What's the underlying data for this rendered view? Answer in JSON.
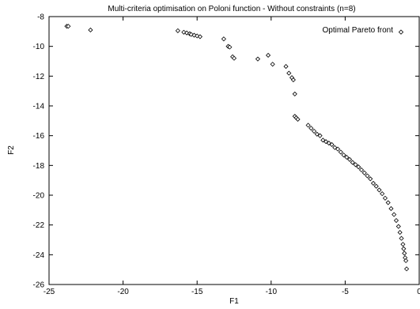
{
  "chart_data": {
    "type": "scatter",
    "title": "Multi-criteria optimisation on Poloni function - Without constraints (n=8)",
    "xlabel": "F1",
    "ylabel": "F2",
    "xlim": [
      -25,
      0
    ],
    "ylim": [
      -26,
      -8
    ],
    "x_ticks": [
      -25,
      -20,
      -15,
      -10,
      -5,
      0
    ],
    "y_ticks": [
      -8,
      -10,
      -12,
      -14,
      -16,
      -18,
      -20,
      -22,
      -24,
      -26
    ],
    "grid": false,
    "legend": {
      "placement": "top-right",
      "entries": [
        "Optimal Pareto front"
      ]
    },
    "series": [
      {
        "name": "Optimal Pareto front",
        "marker": "diamond",
        "points": [
          [
            -23.8,
            -8.65
          ],
          [
            -23.7,
            -8.65
          ],
          [
            -22.2,
            -8.9
          ],
          [
            -16.3,
            -8.95
          ],
          [
            -15.9,
            -9.05
          ],
          [
            -15.7,
            -9.1
          ],
          [
            -15.5,
            -9.15
          ],
          [
            -15.4,
            -9.2
          ],
          [
            -15.2,
            -9.25
          ],
          [
            -15.0,
            -9.3
          ],
          [
            -14.8,
            -9.35
          ],
          [
            -13.2,
            -9.5
          ],
          [
            -12.9,
            -10.0
          ],
          [
            -12.8,
            -10.05
          ],
          [
            -12.6,
            -10.7
          ],
          [
            -12.5,
            -10.8
          ],
          [
            -10.9,
            -10.85
          ],
          [
            -10.2,
            -10.6
          ],
          [
            -9.9,
            -11.2
          ],
          [
            -9.0,
            -11.35
          ],
          [
            -8.8,
            -11.8
          ],
          [
            -8.6,
            -12.1
          ],
          [
            -8.5,
            -12.25
          ],
          [
            -8.4,
            -13.2
          ],
          [
            -8.4,
            -14.7
          ],
          [
            -8.3,
            -14.8
          ],
          [
            -8.2,
            -14.9
          ],
          [
            -7.5,
            -15.3
          ],
          [
            -7.3,
            -15.5
          ],
          [
            -7.1,
            -15.7
          ],
          [
            -6.9,
            -15.9
          ],
          [
            -6.7,
            -16.0
          ],
          [
            -6.5,
            -16.3
          ],
          [
            -6.3,
            -16.4
          ],
          [
            -6.1,
            -16.5
          ],
          [
            -5.9,
            -16.6
          ],
          [
            -5.7,
            -16.8
          ],
          [
            -5.5,
            -16.9
          ],
          [
            -5.3,
            -17.1
          ],
          [
            -5.1,
            -17.3
          ],
          [
            -4.9,
            -17.45
          ],
          [
            -4.7,
            -17.6
          ],
          [
            -4.5,
            -17.8
          ],
          [
            -4.3,
            -17.95
          ],
          [
            -4.1,
            -18.1
          ],
          [
            -3.9,
            -18.3
          ],
          [
            -3.7,
            -18.5
          ],
          [
            -3.5,
            -18.7
          ],
          [
            -3.3,
            -18.9
          ],
          [
            -3.1,
            -19.2
          ],
          [
            -2.9,
            -19.4
          ],
          [
            -2.7,
            -19.65
          ],
          [
            -2.5,
            -19.9
          ],
          [
            -2.3,
            -20.2
          ],
          [
            -2.1,
            -20.5
          ],
          [
            -1.9,
            -20.9
          ],
          [
            -1.7,
            -21.3
          ],
          [
            -1.55,
            -21.7
          ],
          [
            -1.4,
            -22.1
          ],
          [
            -1.3,
            -22.5
          ],
          [
            -1.2,
            -22.9
          ],
          [
            -1.1,
            -23.3
          ],
          [
            -1.05,
            -23.6
          ],
          [
            -1.0,
            -23.9
          ],
          [
            -0.95,
            -24.2
          ],
          [
            -0.9,
            -24.4
          ],
          [
            -0.85,
            -24.95
          ]
        ]
      }
    ]
  }
}
